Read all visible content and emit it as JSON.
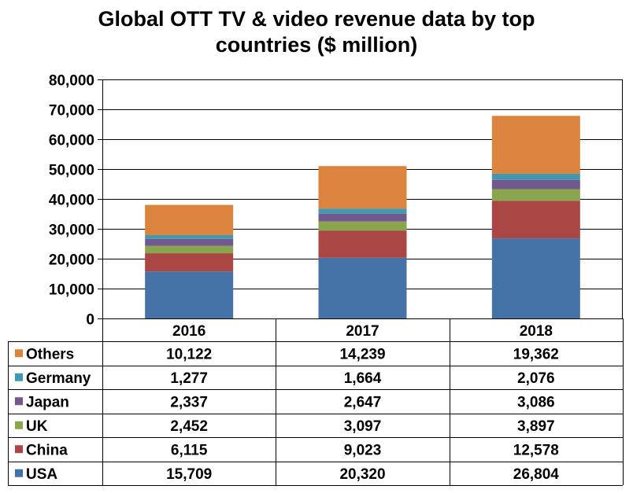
{
  "chart_data": {
    "type": "bar",
    "stacked": true,
    "title_lines": [
      "Global OTT TV & video revenue data by top",
      "countries ($ million)"
    ],
    "categories": [
      "2016",
      "2017",
      "2018"
    ],
    "ylim": [
      0,
      80000
    ],
    "yticks": [
      0,
      10000,
      20000,
      30000,
      40000,
      50000,
      60000,
      70000,
      80000
    ],
    "ytick_labels": [
      "0",
      "10,000",
      "20,000",
      "30,000",
      "40,000",
      "50,000",
      "60,000",
      "70,000",
      "80,000"
    ],
    "grid": true,
    "data_table": true,
    "series": [
      {
        "name": "USA",
        "color": "#4572A7",
        "values": [
          15709,
          20320,
          26804
        ],
        "labels": [
          "15,709",
          "20,320",
          "26,804"
        ]
      },
      {
        "name": "China",
        "color": "#AA4643",
        "values": [
          6115,
          9023,
          12578
        ],
        "labels": [
          "6,115",
          "9,023",
          "12,578"
        ]
      },
      {
        "name": "UK",
        "color": "#89A54E",
        "values": [
          2452,
          3097,
          3897
        ],
        "labels": [
          "2,452",
          "3,097",
          "3,897"
        ]
      },
      {
        "name": "Japan",
        "color": "#71588F",
        "values": [
          2337,
          2647,
          3086
        ],
        "labels": [
          "2,337",
          "2,647",
          "3,086"
        ]
      },
      {
        "name": "Germany",
        "color": "#4198AF",
        "values": [
          1277,
          1664,
          2076
        ],
        "labels": [
          "1,277",
          "1,664",
          "2,076"
        ]
      },
      {
        "name": "Others",
        "color": "#DB843D",
        "values": [
          10122,
          14239,
          19362
        ],
        "labels": [
          "10,122",
          "14,239",
          "19,362"
        ]
      }
    ]
  }
}
